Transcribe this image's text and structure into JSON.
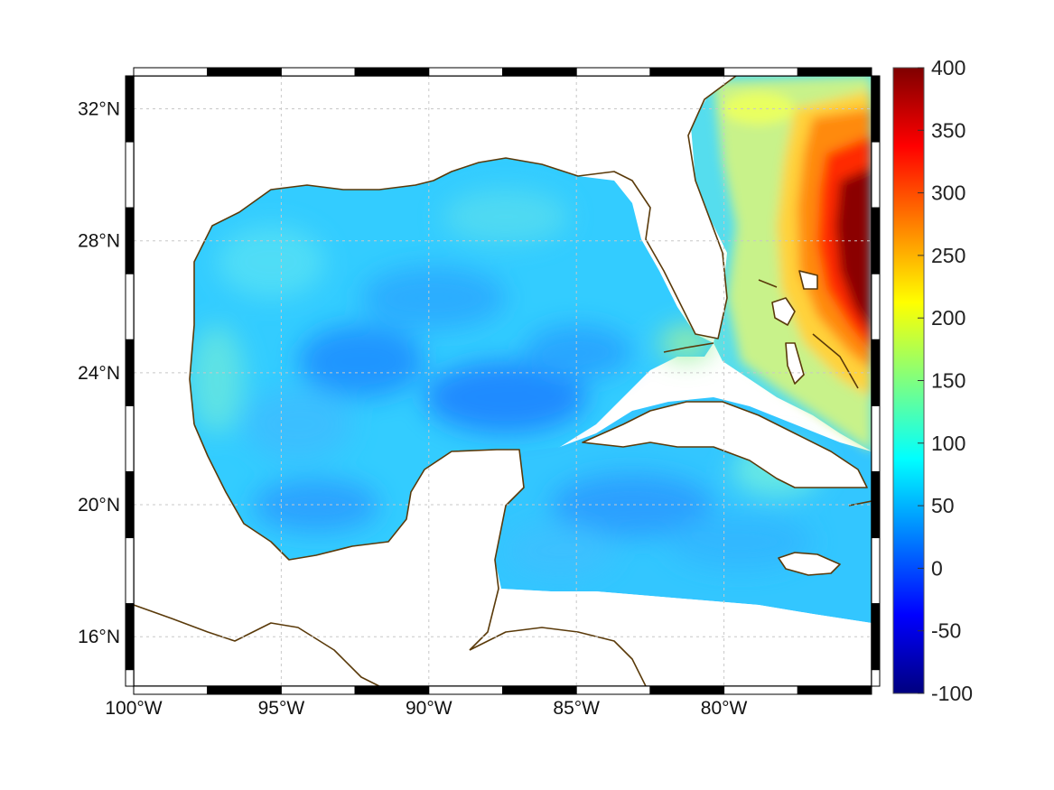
{
  "chart_data": {
    "type": "heatmap",
    "title": "",
    "xlabel": "",
    "ylabel": "",
    "projection": "equirectangular",
    "xlim": [
      -100,
      -75
    ],
    "ylim": [
      14.5,
      33
    ],
    "x_ticks": [
      {
        "value": -100,
        "label": "100°W"
      },
      {
        "value": -95,
        "label": "95°W"
      },
      {
        "value": -90,
        "label": "90°W"
      },
      {
        "value": -85,
        "label": "85°W"
      },
      {
        "value": -80,
        "label": "80°W"
      }
    ],
    "y_ticks": [
      {
        "value": 32,
        "label": "32°N"
      },
      {
        "value": 28,
        "label": "28°N"
      },
      {
        "value": 24,
        "label": "24°N"
      },
      {
        "value": 20,
        "label": "20°N"
      },
      {
        "value": 16,
        "label": "16°N"
      }
    ],
    "gridlines": true,
    "colormap": "jet",
    "colorbar": {
      "range": [
        -100,
        400
      ],
      "ticks": [
        400,
        350,
        300,
        250,
        200,
        150,
        100,
        50,
        0,
        -50,
        -100
      ],
      "labels": [
        "400",
        "350",
        "300",
        "250",
        "200",
        "150",
        "100",
        "50",
        "0",
        "-50",
        "-100"
      ],
      "position": "right"
    },
    "field_summary": [
      {
        "region": "central Gulf of Mexico",
        "approx_value": 40
      },
      {
        "region": "western and northern Gulf shelf",
        "approx_value": 90
      },
      {
        "region": "Caribbean south of Cuba",
        "approx_value": 60
      },
      {
        "region": "Straits of Florida / Bahamas",
        "approx_value": 130
      },
      {
        "region": "Atlantic off Georgia coast",
        "approx_value": 140
      },
      {
        "region": "Atlantic east of Bahamas (Gulf Stream)",
        "approx_value": 400
      }
    ],
    "colors": {
      "coastline": "#5a3a0a",
      "grid": "#c8c8c8",
      "frame": "#000000"
    }
  }
}
